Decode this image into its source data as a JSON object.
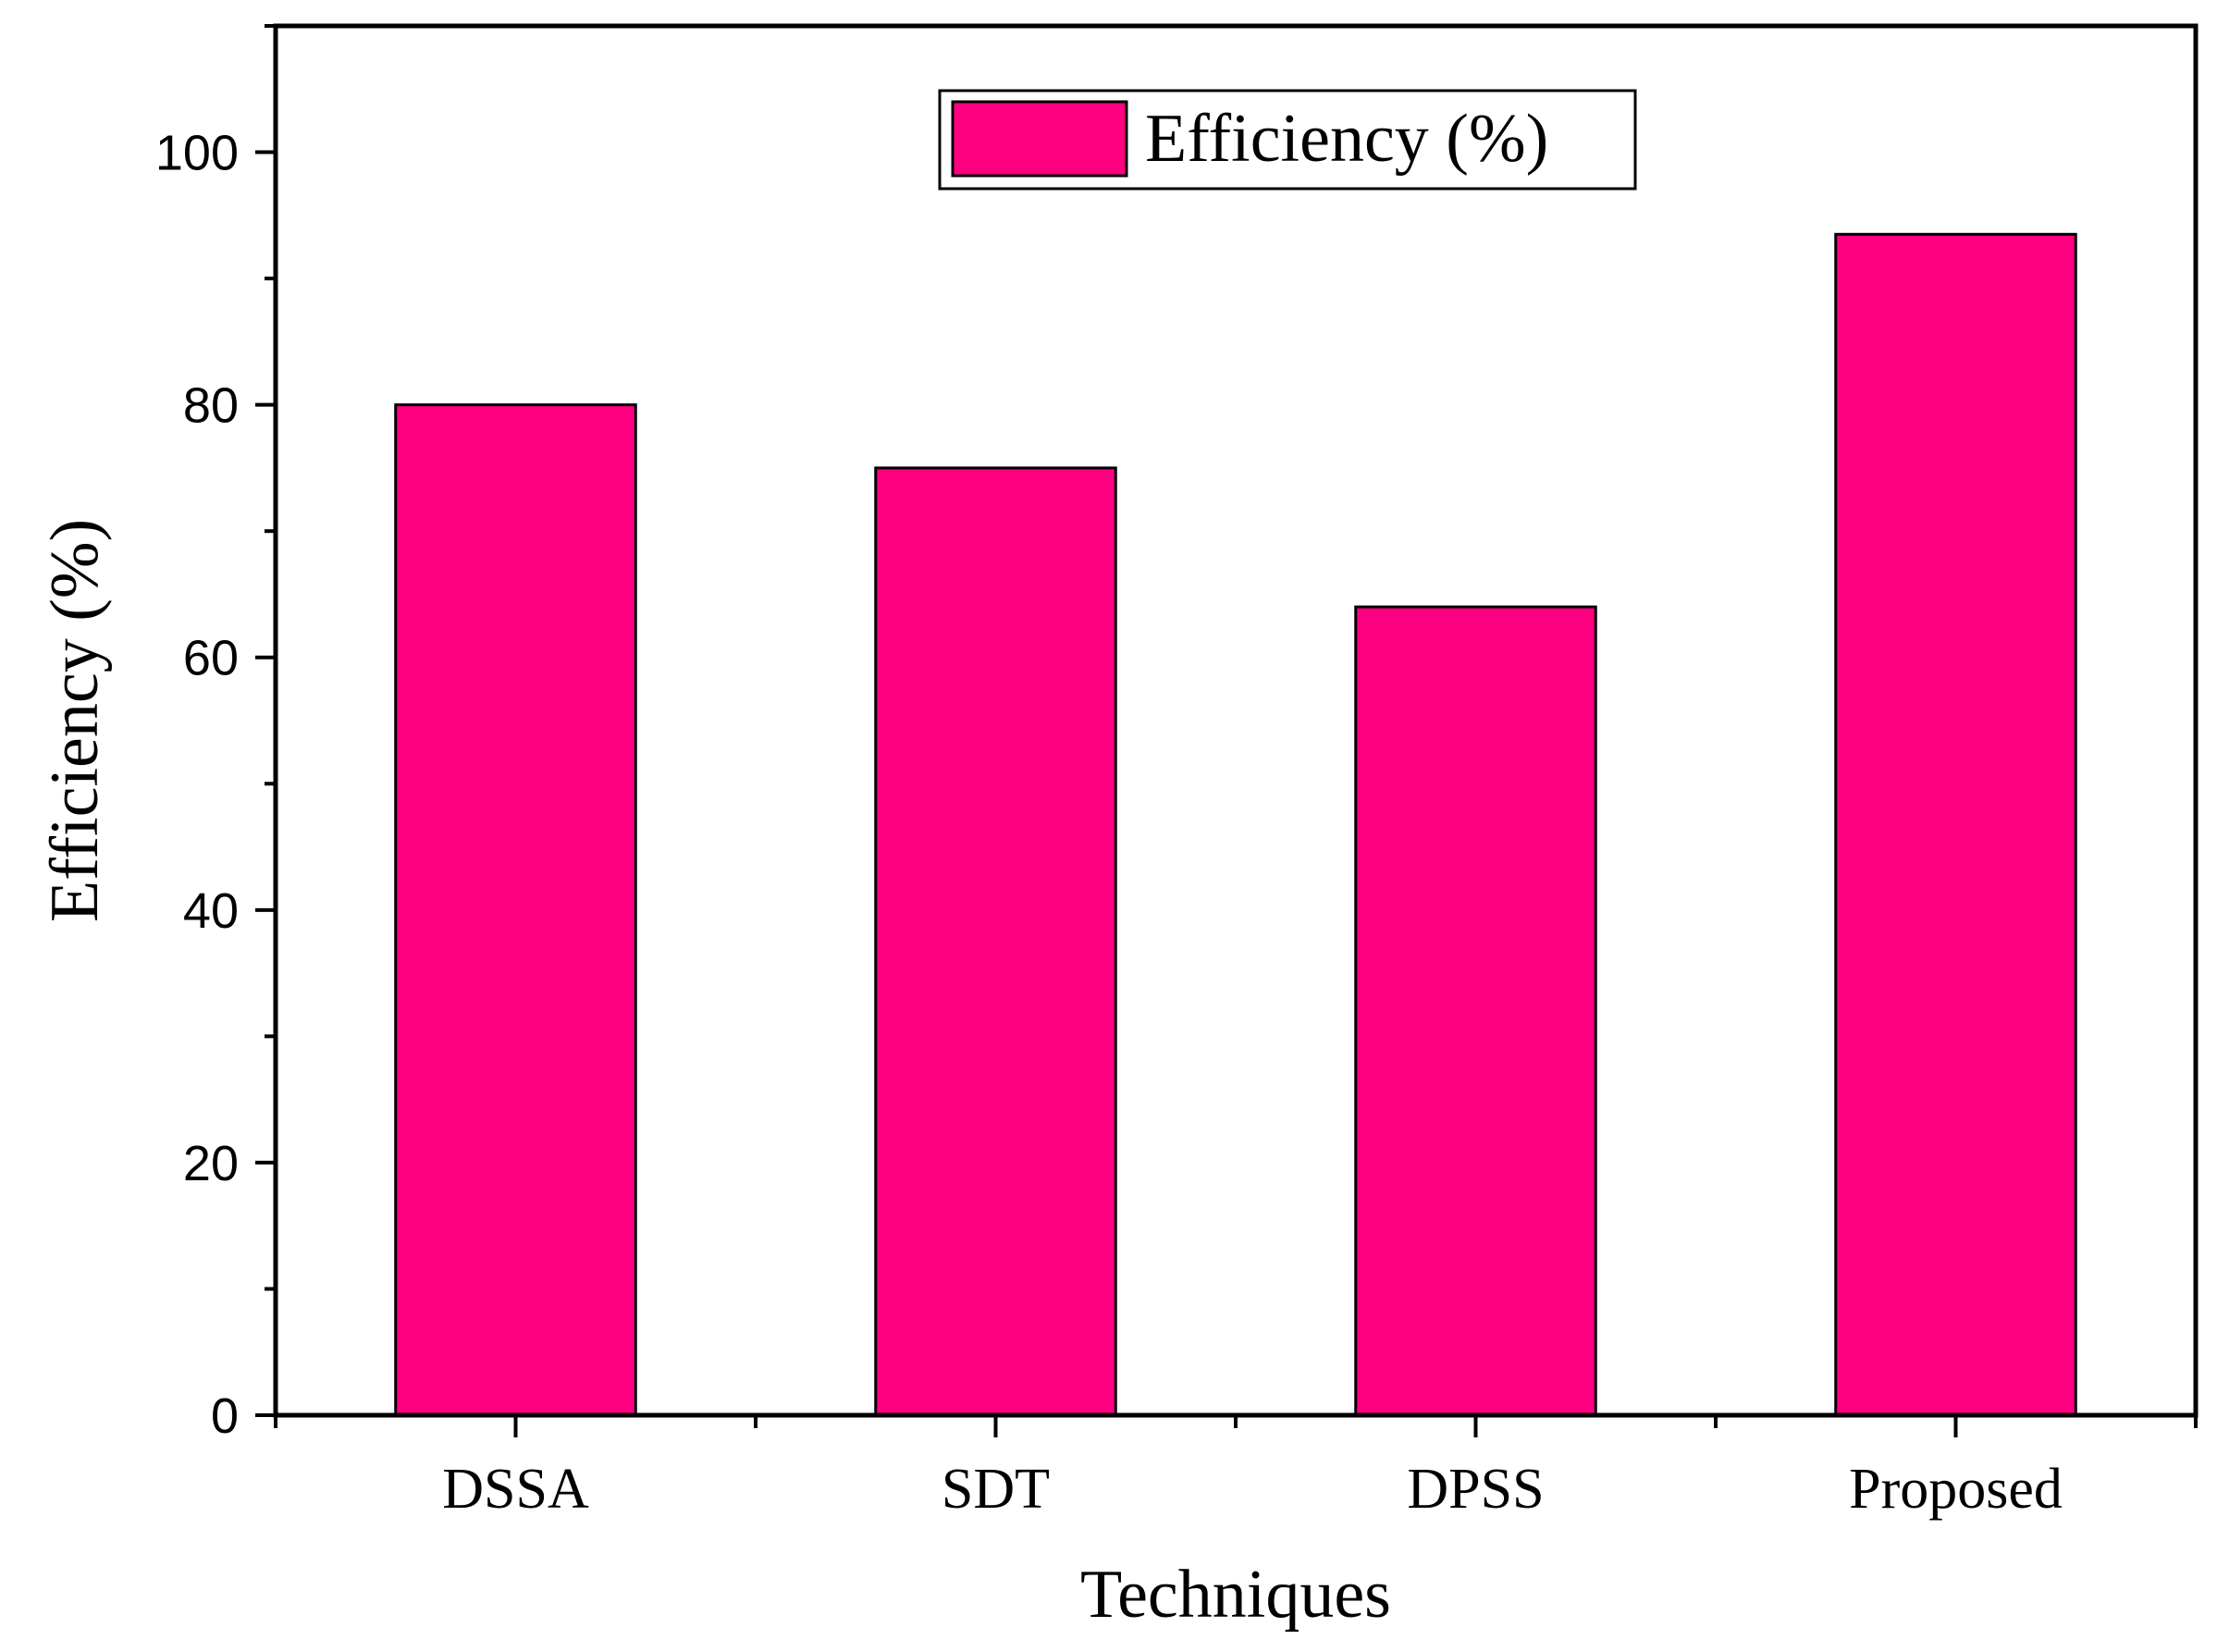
{
  "chart_data": {
    "type": "bar",
    "categories": [
      "DSSA",
      "SDT",
      "DPSS",
      "Proposed"
    ],
    "series": [
      {
        "name": "Efficiency (%)",
        "values": [
          80,
          75,
          64,
          93.5
        ]
      }
    ],
    "xlabel": "Techniques",
    "ylabel": "Efficiency (%)",
    "ylim": [
      0,
      110
    ],
    "yticks": [
      0,
      20,
      40,
      60,
      80,
      100
    ],
    "grid": false,
    "legend_position": "top-center",
    "bar_color": "#ff0080"
  }
}
